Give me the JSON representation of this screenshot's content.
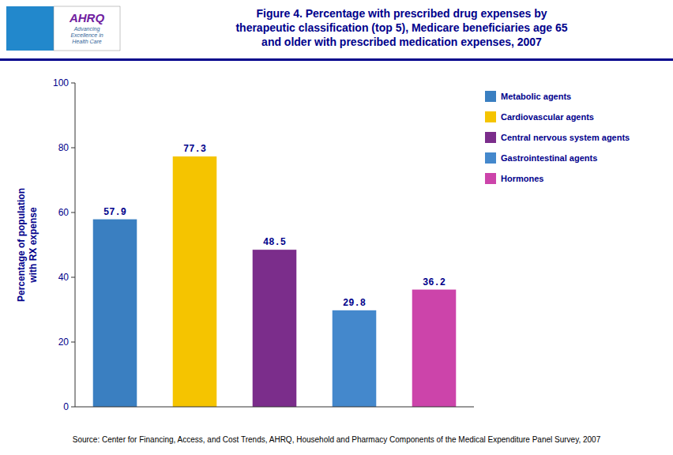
{
  "chart_data": {
    "type": "bar",
    "title": "Figure 4. Percentage with prescribed drug expenses by\ntherapeutic classification (top 5), Medicare beneficiaries age 65\nand older with prescribed medication expenses, 2007",
    "ylabel": "Percentage of population\nwith RX expense",
    "categories": [
      "Metabolic agents",
      "Cardiovascular agents",
      "Central nervous system agents",
      "Gastrointestinal agents",
      "Hormones"
    ],
    "values": [
      57.9,
      77.3,
      48.5,
      29.8,
      36.2
    ],
    "colors": [
      "#3a7fc1",
      "#f5c400",
      "#7b2d8b",
      "#4488cc",
      "#cc44aa"
    ],
    "ylim": [
      0,
      100
    ],
    "yticks": [
      0,
      20,
      40,
      60,
      80,
      100
    ],
    "grid": false,
    "legend": "right",
    "data_labels": true,
    "tick_labels": "y",
    "source": "Source: Center for Financing, Access, and Cost Trends, AHRQ, Household and Pharmacy Components of the Medical Expenditure Panel Survey, 2007",
    "logo": {
      "title": "AHRQ",
      "subtitle": "Advancing\nExcellence in\nHealth Care"
    }
  }
}
